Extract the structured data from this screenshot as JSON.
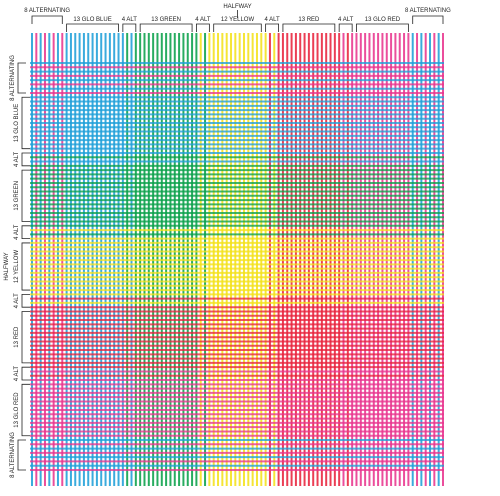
{
  "palette": {
    "blue": "#1f9fd8",
    "green": "#0aa04a",
    "yellow": "#f4e11a",
    "red": "#e8233c",
    "pink": "#e8358e",
    "bracket": "#222222",
    "background": "#ffffff"
  },
  "top_labels": [
    "8 ALTERNATING",
    "13 GLO BLUE",
    "4 ALT",
    "13 GREEN",
    "4 ALT",
    "12 YELLOW",
    "4 ALT",
    "13 RED",
    "4 ALT",
    "13 GLO RED",
    "8 ALTERNATING"
  ],
  "top_halfway": "HALFWAY",
  "left_labels": [
    "8 ALTERNATING",
    "13 GLO BLUE",
    "4 ALT",
    "13 GREEN",
    "4 ALT",
    "12 YELLOW",
    "4 ALT",
    "13 RED",
    "4 ALT",
    "13 GLO RED",
    "8 ALTERNATING"
  ],
  "left_halfway": "HALFWAY",
  "thread_sequence": [
    {
      "label": "8 ALTERNATING",
      "count": 8,
      "pattern": "alternating",
      "colors": [
        "blue",
        "pink"
      ]
    },
    {
      "label": "13 GLO BLUE",
      "count": 13,
      "pattern": "solid",
      "colors": [
        "blue"
      ]
    },
    {
      "label": "4 ALT",
      "count": 4,
      "pattern": "alternating",
      "colors": [
        "blue",
        "green"
      ]
    },
    {
      "label": "13 GREEN",
      "count": 13,
      "pattern": "solid",
      "colors": [
        "green"
      ]
    },
    {
      "label": "4 ALT",
      "count": 4,
      "pattern": "alternating",
      "colors": [
        "green",
        "yellow"
      ]
    },
    {
      "label": "12 YELLOW",
      "count": 12,
      "pattern": "solid",
      "colors": [
        "yellow"
      ]
    },
    {
      "label": "4 ALT",
      "count": 4,
      "pattern": "alternating",
      "colors": [
        "yellow",
        "red"
      ]
    },
    {
      "label": "13 RED",
      "count": 13,
      "pattern": "solid",
      "colors": [
        "red"
      ]
    },
    {
      "label": "4 ALT",
      "count": 4,
      "pattern": "alternating",
      "colors": [
        "red",
        "pink"
      ]
    },
    {
      "label": "13 GLO RED",
      "count": 13,
      "pattern": "solid",
      "colors": [
        "pink"
      ]
    },
    {
      "label": "8 ALTERNATING",
      "count": 8,
      "pattern": "alternating",
      "colors": [
        "blue",
        "pink"
      ]
    }
  ]
}
